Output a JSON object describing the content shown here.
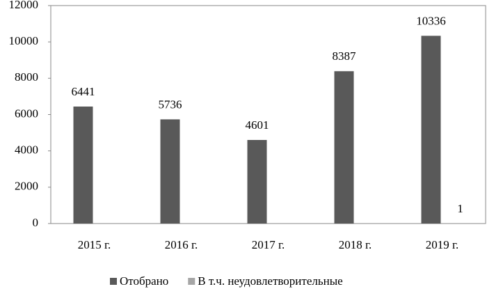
{
  "chart_data": {
    "type": "bar",
    "categories": [
      "2015 г.",
      "2016 г.",
      "2017 г.",
      "2018 г.",
      "2019 г."
    ],
    "series": [
      {
        "name": "Отобрано",
        "color": "#595959",
        "values": [
          6441,
          5736,
          4601,
          8387,
          10336
        ]
      },
      {
        "name": "В т.ч. неудовлетворительные",
        "color": "#a6a6a6",
        "values": [
          null,
          null,
          null,
          null,
          1
        ]
      }
    ],
    "ylim": [
      0,
      12000
    ],
    "yticks": [
      0,
      2000,
      4000,
      6000,
      8000,
      10000,
      12000
    ],
    "grid": false,
    "legend": "bottom"
  }
}
